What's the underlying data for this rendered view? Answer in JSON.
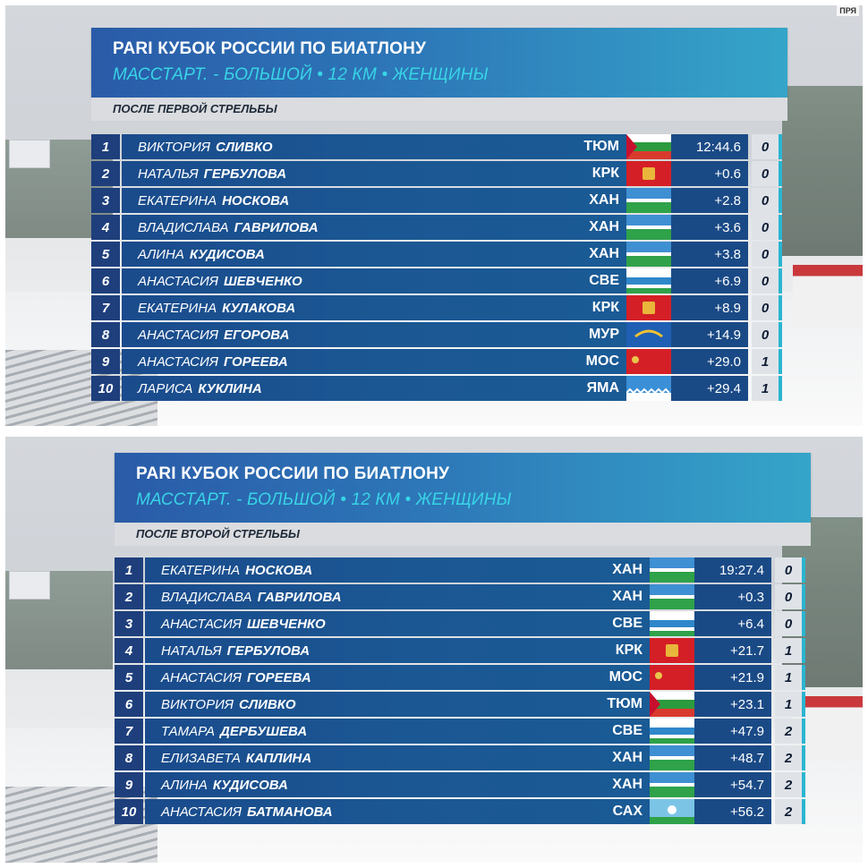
{
  "corner_tag": "ПРЯ",
  "panels": [
    {
      "title": "PARI КУБОК РОССИИ ПО БИАТЛОНУ",
      "subtitle": "МАССТАРТ. - БОЛЬШОЙ • 12 КМ • ЖЕНЩИНЫ",
      "stage": "ПОСЛЕ ПЕРВОЙ СТРЕЛЬБЫ",
      "rows": [
        {
          "rank": "1",
          "first": "ВИКТОРИЯ",
          "last": "СЛИВКО",
          "team": "ТЮМ",
          "flag": "tyumen-flag",
          "time": "12:44.6",
          "pen": "0"
        },
        {
          "rank": "2",
          "first": "НАТАЛЬЯ",
          "last": "ГЕРБУЛОВА",
          "team": "КРК",
          "flag": "krasnoyarsk-flag",
          "time": "+0.6",
          "pen": "0"
        },
        {
          "rank": "3",
          "first": "ЕКАТЕРИНА",
          "last": "НОСКОВА",
          "team": "ХАН",
          "flag": "khanty-mansi-flag",
          "time": "+2.8",
          "pen": "0"
        },
        {
          "rank": "4",
          "first": "ВЛАДИСЛАВА",
          "last": "ГАВРИЛОВА",
          "team": "ХАН",
          "flag": "khanty-mansi-flag",
          "time": "+3.6",
          "pen": "0"
        },
        {
          "rank": "5",
          "first": "АЛИНА",
          "last": "КУДИСОВА",
          "team": "ХАН",
          "flag": "khanty-mansi-flag",
          "time": "+3.8",
          "pen": "0"
        },
        {
          "rank": "6",
          "first": "АНАСТАСИЯ",
          "last": "ШЕВЧЕНКО",
          "team": "СВЕ",
          "flag": "sverdlovsk-flag",
          "time": "+6.9",
          "pen": "0"
        },
        {
          "rank": "7",
          "first": "ЕКАТЕРИНА",
          "last": "КУЛАКОВА",
          "team": "КРК",
          "flag": "krasnoyarsk-flag",
          "time": "+8.9",
          "pen": "0"
        },
        {
          "rank": "8",
          "first": "АНАСТАСИЯ",
          "last": "ЕГОРОВА",
          "team": "МУР",
          "flag": "murmansk-flag",
          "time": "+14.9",
          "pen": "0"
        },
        {
          "rank": "9",
          "first": "АНАСТАСИЯ",
          "last": "ГОРЕЕВА",
          "team": "МОС",
          "flag": "moscow-flag",
          "time": "+29.0",
          "pen": "1"
        },
        {
          "rank": "10",
          "first": "ЛАРИСА",
          "last": "КУКЛИНА",
          "team": "ЯМА",
          "flag": "yamal-flag",
          "time": "+29.4",
          "pen": "1"
        }
      ]
    },
    {
      "title": "PARI КУБОК РОССИИ ПО БИАТЛОНУ",
      "subtitle": "МАССТАРТ. - БОЛЬШОЙ • 12 КМ • ЖЕНЩИНЫ",
      "stage": "ПОСЛЕ ВТОРОЙ СТРЕЛЬБЫ",
      "rows": [
        {
          "rank": "1",
          "first": "ЕКАТЕРИНА",
          "last": "НОСКОВА",
          "team": "ХАН",
          "flag": "khanty-mansi-flag",
          "time": "19:27.4",
          "pen": "0"
        },
        {
          "rank": "2",
          "first": "ВЛАДИСЛАВА",
          "last": "ГАВРИЛОВА",
          "team": "ХАН",
          "flag": "khanty-mansi-flag",
          "time": "+0.3",
          "pen": "0"
        },
        {
          "rank": "3",
          "first": "АНАСТАСИЯ",
          "last": "ШЕВЧЕНКО",
          "team": "СВЕ",
          "flag": "sverdlovsk-flag",
          "time": "+6.4",
          "pen": "0"
        },
        {
          "rank": "4",
          "first": "НАТАЛЬЯ",
          "last": "ГЕРБУЛОВА",
          "team": "КРК",
          "flag": "krasnoyarsk-flag",
          "time": "+21.7",
          "pen": "1"
        },
        {
          "rank": "5",
          "first": "АНАСТАСИЯ",
          "last": "ГОРЕЕВА",
          "team": "МОС",
          "flag": "moscow-flag",
          "time": "+21.9",
          "pen": "1"
        },
        {
          "rank": "6",
          "first": "ВИКТОРИЯ",
          "last": "СЛИВКО",
          "team": "ТЮМ",
          "flag": "tyumen-flag",
          "time": "+23.1",
          "pen": "1"
        },
        {
          "rank": "7",
          "first": "ТАМАРА",
          "last": "ДЕРБУШЕВА",
          "team": "СВЕ",
          "flag": "sverdlovsk-flag",
          "time": "+47.9",
          "pen": "2"
        },
        {
          "rank": "8",
          "first": "ЕЛИЗАВЕТА",
          "last": "КАПЛИНА",
          "team": "ХАН",
          "flag": "khanty-mansi-flag",
          "time": "+48.7",
          "pen": "2"
        },
        {
          "rank": "9",
          "first": "АЛИНА",
          "last": "КУДИСОВА",
          "team": "ХАН",
          "flag": "khanty-mansi-flag",
          "time": "+54.7",
          "pen": "2"
        },
        {
          "rank": "10",
          "first": "АНАСТАСИЯ",
          "last": "БАТМАНОВА",
          "team": "САХ",
          "flag": "yakutia-flag",
          "time": "+56.2",
          "pen": "2"
        }
      ]
    }
  ]
}
